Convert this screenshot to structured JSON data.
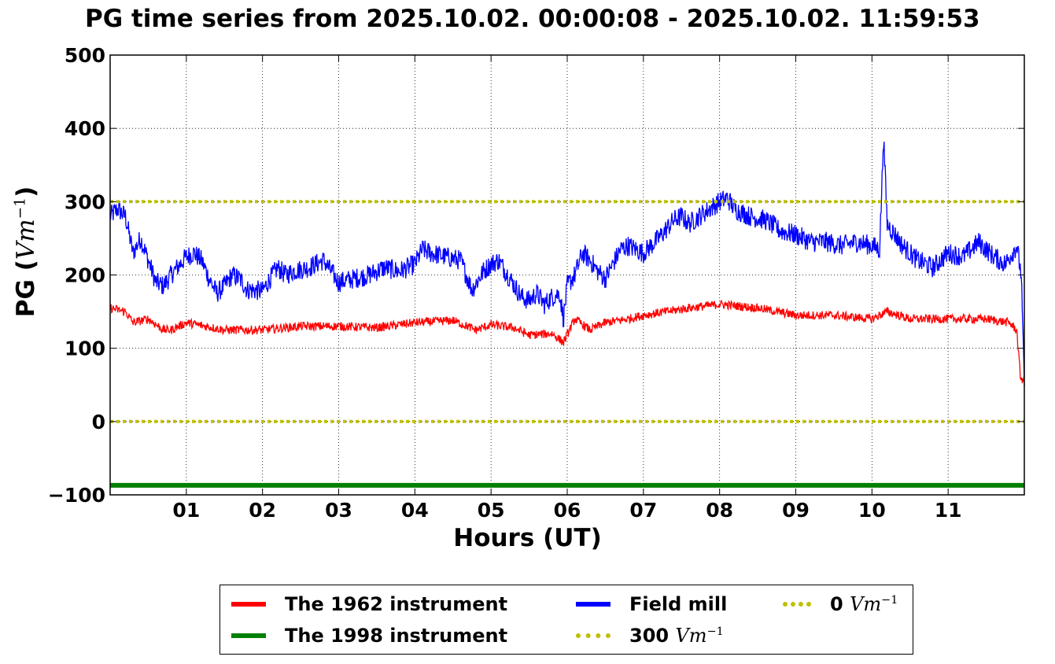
{
  "title": "PG time series from 2025.10.02. 00:00:08 - 2025.10.02. 11:59:53",
  "ylabel_text": "PG (",
  "ylabel_unit_base": "Vm",
  "ylabel_unit_exp": "−1",
  "ylabel_close": ")",
  "xlabel": "Hours (UT)",
  "legend": [
    {
      "label": "The 1962 instrument",
      "unit": "",
      "color": "#ff0000",
      "style": "solid"
    },
    {
      "label": "The 1998 instrument",
      "unit": "",
      "color": "#008000",
      "style": "solid"
    },
    {
      "label": "Field mill",
      "unit": "",
      "color": "#0000ff",
      "style": "solid"
    },
    {
      "label": "300",
      "unit": "Vm",
      "color": "#bfbf00",
      "style": "dotted"
    },
    {
      "label": "0",
      "unit": "Vm",
      "color": "#bfbf00",
      "style": "dotted"
    }
  ],
  "legend_unit_exp": "−1",
  "chart_data": {
    "type": "line",
    "xlim": [
      0,
      12
    ],
    "ylim": [
      -100,
      500
    ],
    "x_ticks": [
      1,
      2,
      3,
      4,
      5,
      6,
      7,
      8,
      9,
      10,
      11
    ],
    "x_tick_labels": [
      "01",
      "02",
      "03",
      "04",
      "05",
      "06",
      "07",
      "08",
      "09",
      "10",
      "11"
    ],
    "y_ticks": [
      -100,
      0,
      100,
      200,
      300,
      400,
      500
    ],
    "y_tick_labels": [
      "−100",
      "0",
      "100",
      "200",
      "300",
      "400",
      "500"
    ],
    "grid": true,
    "legend_position": "below",
    "series": [
      {
        "name": "Field mill",
        "color": "#0000ff",
        "x": [
          0,
          0.1,
          0.2,
          0.3,
          0.4,
          0.5,
          0.6,
          0.7,
          0.8,
          1.0,
          1.1,
          1.2,
          1.3,
          1.4,
          1.5,
          1.6,
          1.7,
          1.8,
          2.0,
          2.1,
          2.2,
          2.3,
          2.4,
          2.6,
          2.8,
          2.9,
          3.0,
          3.2,
          3.4,
          3.6,
          3.8,
          4.0,
          4.1,
          4.2,
          4.4,
          4.6,
          4.75,
          4.9,
          5.0,
          5.1,
          5.25,
          5.4,
          5.5,
          5.6,
          5.7,
          5.8,
          5.9,
          5.95,
          6.0,
          6.1,
          6.2,
          6.3,
          6.4,
          6.5,
          6.6,
          6.7,
          6.8,
          7.0,
          7.2,
          7.4,
          7.5,
          7.6,
          7.8,
          8.0,
          8.1,
          8.2,
          8.4,
          8.6,
          8.8,
          9.0,
          9.2,
          9.4,
          9.6,
          9.8,
          10.0,
          10.1,
          10.14,
          10.15,
          10.2,
          10.4,
          10.6,
          10.8,
          11.0,
          11.2,
          11.4,
          11.6,
          11.75,
          11.9,
          11.96,
          12.0
        ],
        "y": [
          280,
          290,
          280,
          230,
          250,
          220,
          190,
          185,
          200,
          225,
          230,
          220,
          195,
          175,
          185,
          200,
          195,
          180,
          178,
          195,
          210,
          200,
          205,
          210,
          220,
          205,
          190,
          195,
          200,
          210,
          205,
          215,
          235,
          230,
          225,
          220,
          180,
          205,
          215,
          220,
          195,
          170,
          165,
          175,
          160,
          170,
          175,
          140,
          185,
          200,
          230,
          220,
          205,
          195,
          215,
          235,
          240,
          230,
          250,
          275,
          280,
          270,
          285,
          300,
          305,
          290,
          280,
          275,
          260,
          255,
          245,
          245,
          240,
          245,
          240,
          235,
          350,
          395,
          270,
          240,
          220,
          210,
          230,
          225,
          245,
          225,
          215,
          240,
          200,
          45
        ],
        "noise": 14
      },
      {
        "name": "The 1962 instrument",
        "color": "#ff0000",
        "x": [
          0,
          0.2,
          0.3,
          0.5,
          0.7,
          0.8,
          1.0,
          1.5,
          2.0,
          2.5,
          3.0,
          3.5,
          4.0,
          4.5,
          4.8,
          5.0,
          5.3,
          5.5,
          5.8,
          5.95,
          6.1,
          6.3,
          6.5,
          6.8,
          7.0,
          7.3,
          7.6,
          8.0,
          8.5,
          9.0,
          9.5,
          10.0,
          10.2,
          10.5,
          11.0,
          11.5,
          11.8,
          11.9,
          11.95,
          12.0
        ],
        "y": [
          155,
          150,
          135,
          140,
          125,
          125,
          135,
          125,
          125,
          130,
          130,
          128,
          135,
          138,
          125,
          132,
          128,
          118,
          120,
          108,
          140,
          125,
          135,
          140,
          145,
          150,
          155,
          160,
          155,
          145,
          145,
          140,
          150,
          140,
          140,
          140,
          135,
          125,
          60,
          55
        ],
        "noise": 6
      },
      {
        "name": "The 1998 instrument",
        "color": "#008000",
        "x": [
          0,
          12
        ],
        "y": [
          -87,
          -87
        ],
        "noise": 0
      },
      {
        "name": "300 Vm⁻¹",
        "color": "#bfbf00",
        "x": [
          0,
          12
        ],
        "y": [
          300,
          300
        ],
        "noise": 0
      },
      {
        "name": "0 Vm⁻¹",
        "color": "#bfbf00",
        "x": [
          0,
          12
        ],
        "y": [
          0,
          0
        ],
        "noise": 0
      }
    ]
  }
}
